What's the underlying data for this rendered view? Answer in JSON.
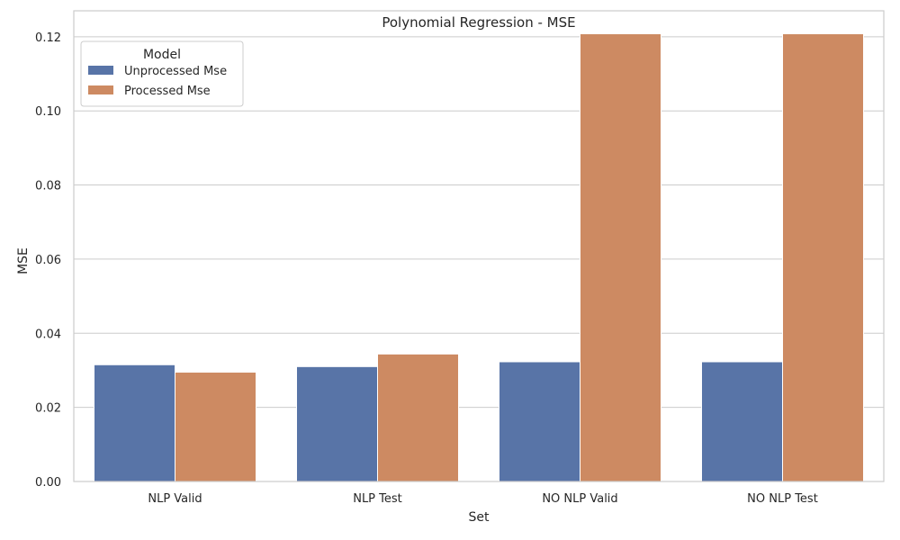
{
  "chart_data": {
    "type": "bar",
    "title": "Polynomial Regression - MSE",
    "xlabel": "Set",
    "ylabel": "MSE",
    "categories": [
      "NLP Valid",
      "NLP Test",
      "NO NLP Valid",
      "NO NLP Test"
    ],
    "series": [
      {
        "name": "Unprocessed Mse",
        "color": "#5874a7",
        "values": [
          0.0315,
          0.031,
          0.0323,
          0.0323
        ]
      },
      {
        "name": "Processed Mse",
        "color": "#cd8a62",
        "values": [
          0.0295,
          0.0344,
          0.1208,
          0.1208
        ]
      }
    ],
    "ylim": [
      0,
      0.127
    ],
    "yticks": [
      0.0,
      0.02,
      0.04,
      0.06,
      0.08,
      0.1,
      0.12
    ],
    "ytick_labels": [
      "0.00",
      "0.02",
      "0.04",
      "0.06",
      "0.08",
      "0.10",
      "0.12"
    ],
    "grid": true,
    "legend": {
      "title": "Model",
      "placement": "top-left"
    }
  }
}
